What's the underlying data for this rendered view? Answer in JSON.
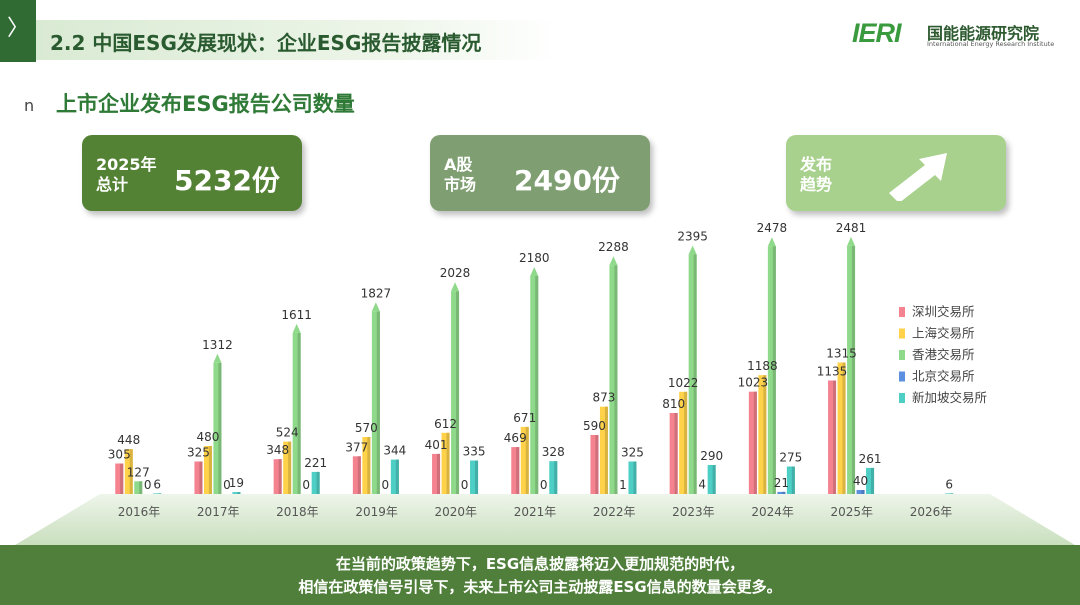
{
  "header": {
    "chevron": "〉",
    "title": "2.2 中国ESG发展现状：企业ESG报告披露情况",
    "logo_mark": "IERI",
    "logo_cn": "国能能源研究院",
    "logo_en": "International Energy Research Institute"
  },
  "section": {
    "bullet": "n",
    "subtitle": "上市企业发布ESG报告公司数量"
  },
  "cards": {
    "total_label": "2025年\n总计",
    "total_value": "5232份",
    "a_label": "A股\n市场",
    "a_value": "2490份",
    "trend_label": "发布\n趋势",
    "trend_icon": "arrow-up-right-icon"
  },
  "footer": {
    "line1": "在当前的政策趋势下，ESG信息披露将迈入更加规范的时代，",
    "line2": "相信在政策信号引导下，未来上市公司主动披露ESG信息的数量会更多。"
  },
  "chart_data": {
    "type": "bar",
    "categories": [
      "2016年",
      "2017年",
      "2018年",
      "2019年",
      "2020年",
      "2021年",
      "2022年",
      "2023年",
      "2024年",
      "2025年",
      "2026年"
    ],
    "series": [
      {
        "name": "深圳交易所",
        "color": "#f4828f",
        "values": [
          305,
          325,
          348,
          377,
          401,
          469,
          590,
          810,
          1023,
          1135,
          null
        ]
      },
      {
        "name": "上海交易所",
        "color": "#ffd24a",
        "values": [
          448,
          480,
          524,
          570,
          612,
          671,
          873,
          1022,
          1188,
          1315,
          null
        ]
      },
      {
        "name": "香港交易所",
        "color": "#8ed98a",
        "values": [
          127,
          1312,
          1611,
          1827,
          2028,
          2180,
          2288,
          2395,
          2478,
          2481,
          null
        ]
      },
      {
        "name": "北京交易所",
        "color": "#5b8fe0",
        "values": [
          0,
          0,
          0,
          0,
          0,
          0,
          1,
          4,
          21,
          40,
          null
        ]
      },
      {
        "name": "新加坡交易所",
        "color": "#4ecfc6",
        "values": [
          6,
          19,
          221,
          344,
          335,
          328,
          325,
          290,
          275,
          261,
          6
        ]
      }
    ],
    "ylim": [
      0,
      2600
    ],
    "grid": false,
    "legend": "right"
  }
}
